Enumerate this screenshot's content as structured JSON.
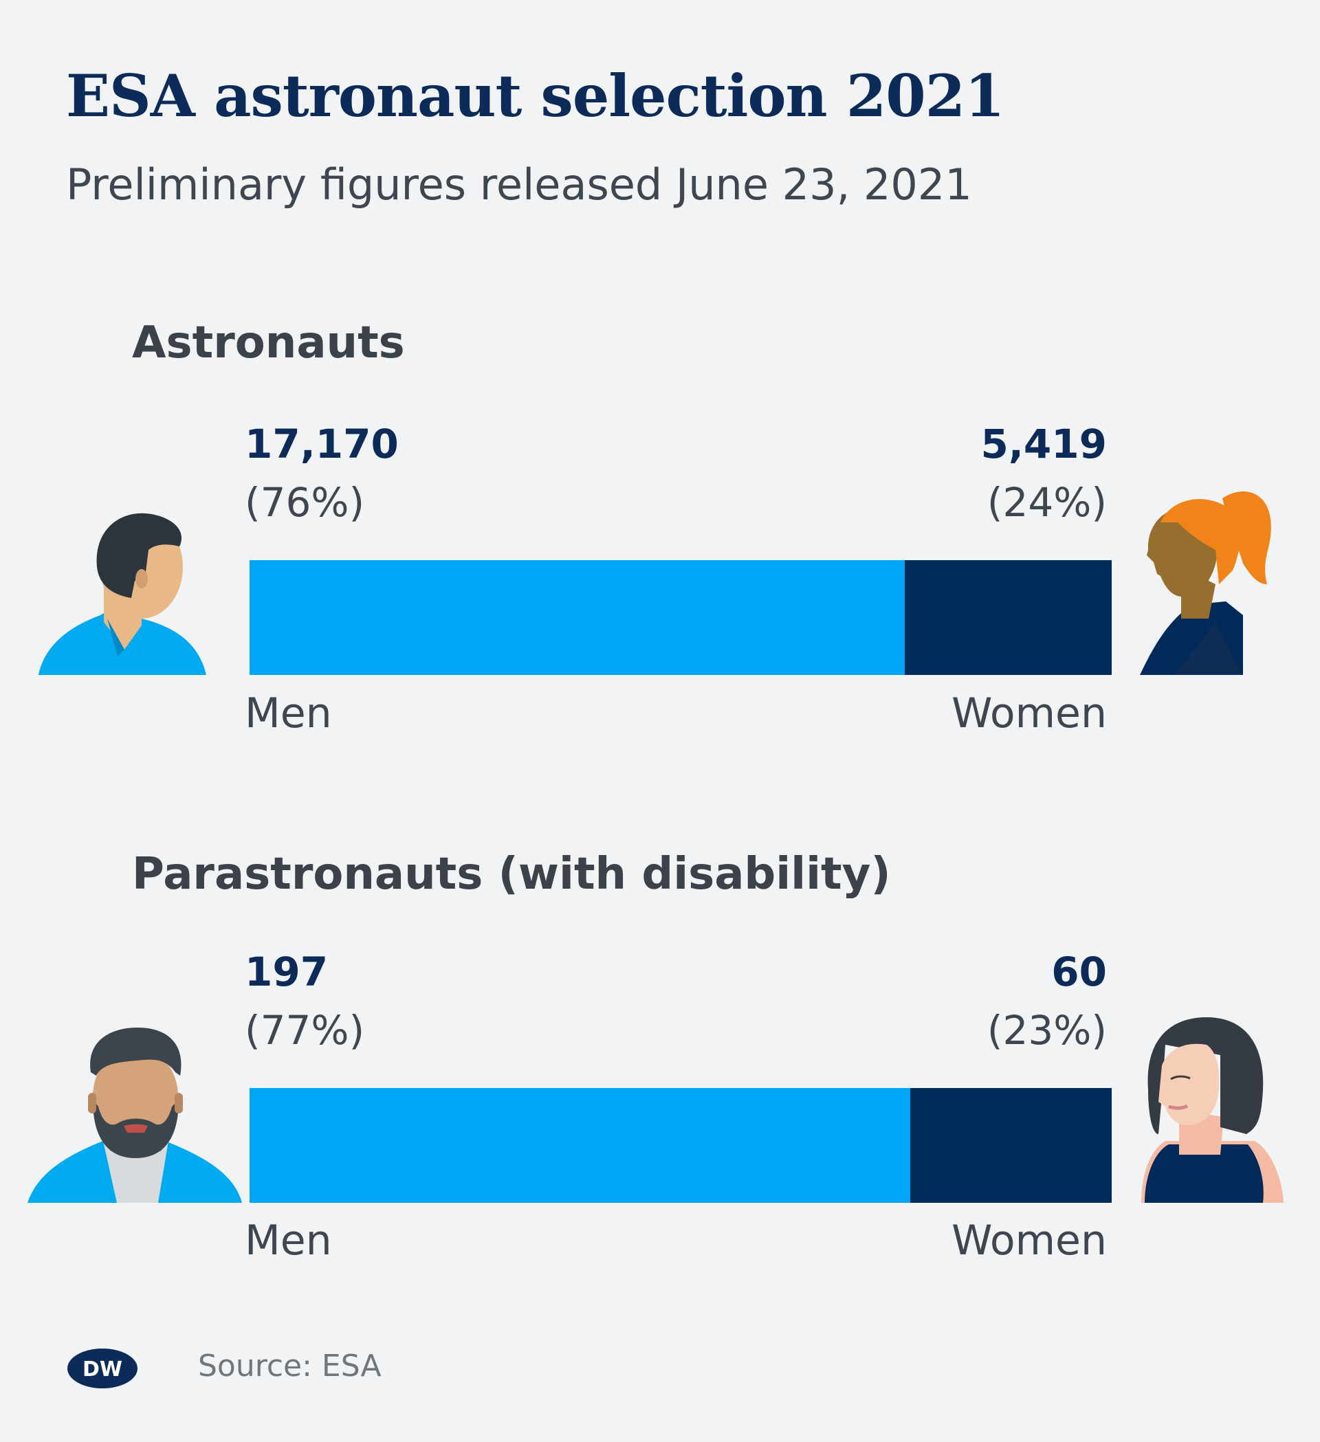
{
  "title": "ESA astronaut selection 2021",
  "subtitle": "Preliminary figures released June 23, 2021",
  "colors": {
    "men": "#00a5f5",
    "women": "#002a5a",
    "brand": "#0c2b58"
  },
  "source": "Source: ESA",
  "logo_text": "DW",
  "icons": [
    "man-portrait-icon",
    "woman-ponytail-portrait-icon",
    "bearded-man-portrait-icon",
    "woman-bob-portrait-icon",
    "dw-logo-icon"
  ],
  "chart_data": [
    {
      "type": "bar",
      "stacked": true,
      "title": "Astronauts",
      "categories": [
        "Men",
        "Women"
      ],
      "values": [
        17170,
        5419
      ],
      "value_labels": [
        "17,170",
        "5,419"
      ],
      "percent_labels": [
        "(76%)",
        "(24%)"
      ]
    },
    {
      "type": "bar",
      "stacked": true,
      "title": "Parastronauts (with disability)",
      "categories": [
        "Men",
        "Women"
      ],
      "values": [
        197,
        60
      ],
      "value_labels": [
        "197",
        "60"
      ],
      "percent_labels": [
        "(77%)",
        "(23%)"
      ]
    }
  ]
}
